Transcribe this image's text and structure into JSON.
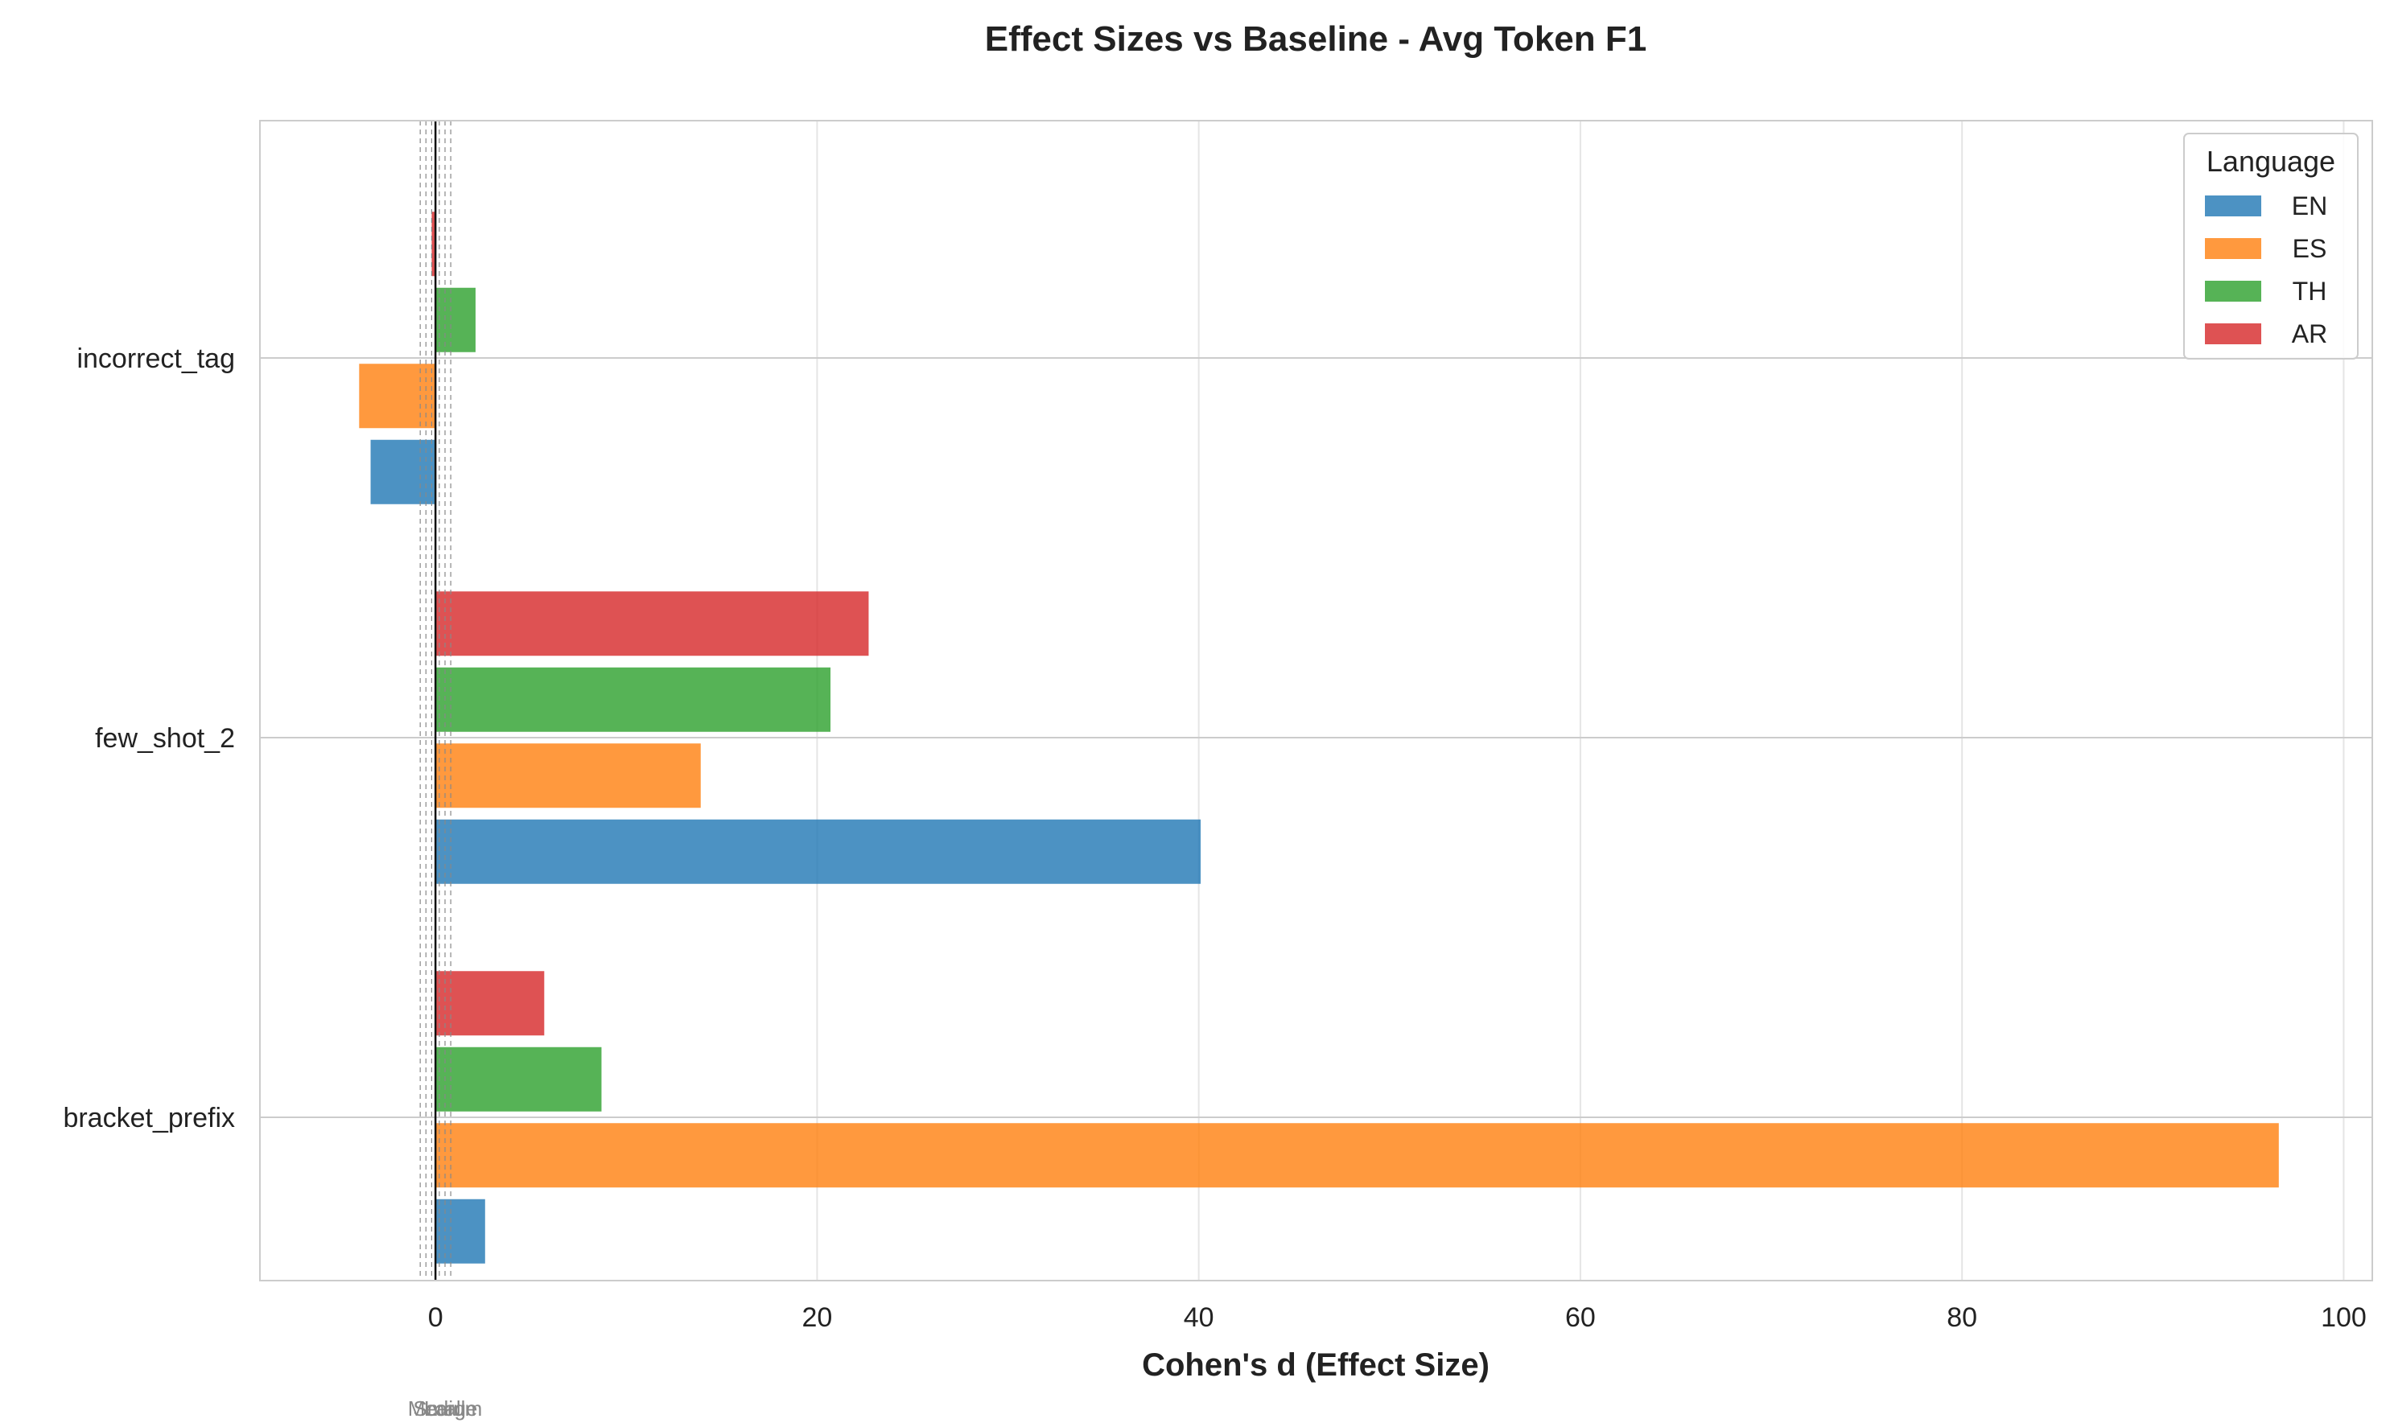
{
  "chart_data": {
    "type": "bar",
    "orientation": "horizontal",
    "title": "Effect Sizes vs Baseline - Avg Token F1",
    "xlabel": "Cohen's d (Effect Size)",
    "ylabel": "",
    "xlim": [
      -9.2,
      101.5
    ],
    "xticks": [
      0,
      20,
      40,
      60,
      80,
      100
    ],
    "categories": [
      "bracket_prefix",
      "few_shot_2",
      "incorrect_tag"
    ],
    "legend": {
      "title": "Language",
      "position": "top-right"
    },
    "series": [
      {
        "name": "EN",
        "color": "#1f77b4",
        "values": [
          2.6,
          40.1,
          -3.4
        ]
      },
      {
        "name": "ES",
        "color": "#ff7f0e",
        "values": [
          96.6,
          13.9,
          -4.0
        ]
      },
      {
        "name": "TH",
        "color": "#2ca02c",
        "values": [
          8.7,
          20.7,
          2.1
        ]
      },
      {
        "name": "AR",
        "color": "#d62728",
        "values": [
          5.7,
          22.7,
          -0.2
        ]
      }
    ],
    "reference_lines": [
      {
        "label": "Small",
        "value": 0.2
      },
      {
        "label": "Medium",
        "value": 0.5
      },
      {
        "label": "Large",
        "value": 0.8
      }
    ],
    "grid": true
  }
}
